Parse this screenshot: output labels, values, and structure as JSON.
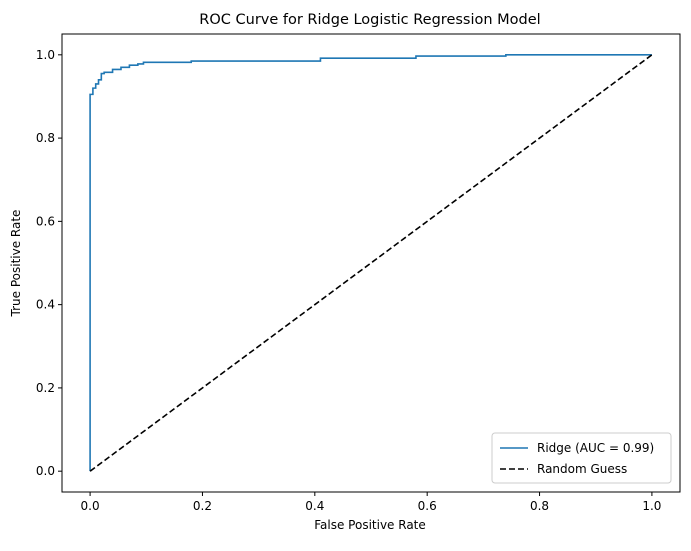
{
  "chart_data": {
    "type": "line",
    "title": "ROC Curve for Ridge Logistic Regression Model",
    "xlabel": "False Positive Rate",
    "ylabel": "True Positive Rate",
    "xlim": [
      -0.05,
      1.05
    ],
    "ylim": [
      -0.05,
      1.05
    ],
    "xticks": [
      0.0,
      0.2,
      0.4,
      0.6,
      0.8,
      1.0
    ],
    "yticks": [
      0.0,
      0.2,
      0.4,
      0.6,
      0.8,
      1.0
    ],
    "xtick_labels": [
      "0.0",
      "0.2",
      "0.4",
      "0.6",
      "0.8",
      "1.0"
    ],
    "ytick_labels": [
      "0.0",
      "0.2",
      "0.4",
      "0.6",
      "0.8",
      "1.0"
    ],
    "grid": false,
    "legend_position": "lower-right",
    "series": [
      {
        "name": "Ridge (AUC = 0.99)",
        "color": "#1f77b4",
        "style": "solid",
        "step": true,
        "x": [
          0.0,
          0.0,
          0.005,
          0.005,
          0.01,
          0.01,
          0.015,
          0.015,
          0.02,
          0.02,
          0.025,
          0.025,
          0.04,
          0.04,
          0.055,
          0.055,
          0.07,
          0.07,
          0.085,
          0.085,
          0.095,
          0.095,
          0.18,
          0.18,
          0.41,
          0.41,
          0.58,
          0.58,
          0.74,
          0.74,
          1.0
        ],
        "y": [
          0.0,
          0.905,
          0.905,
          0.92,
          0.92,
          0.93,
          0.93,
          0.94,
          0.94,
          0.955,
          0.955,
          0.958,
          0.958,
          0.965,
          0.965,
          0.97,
          0.97,
          0.975,
          0.975,
          0.978,
          0.978,
          0.982,
          0.982,
          0.985,
          0.985,
          0.992,
          0.992,
          0.997,
          0.997,
          1.0,
          1.0
        ]
      },
      {
        "name": "Random Guess",
        "color": "#000000",
        "style": "dashed",
        "step": false,
        "x": [
          0.0,
          1.0
        ],
        "y": [
          0.0,
          1.0
        ]
      }
    ]
  }
}
